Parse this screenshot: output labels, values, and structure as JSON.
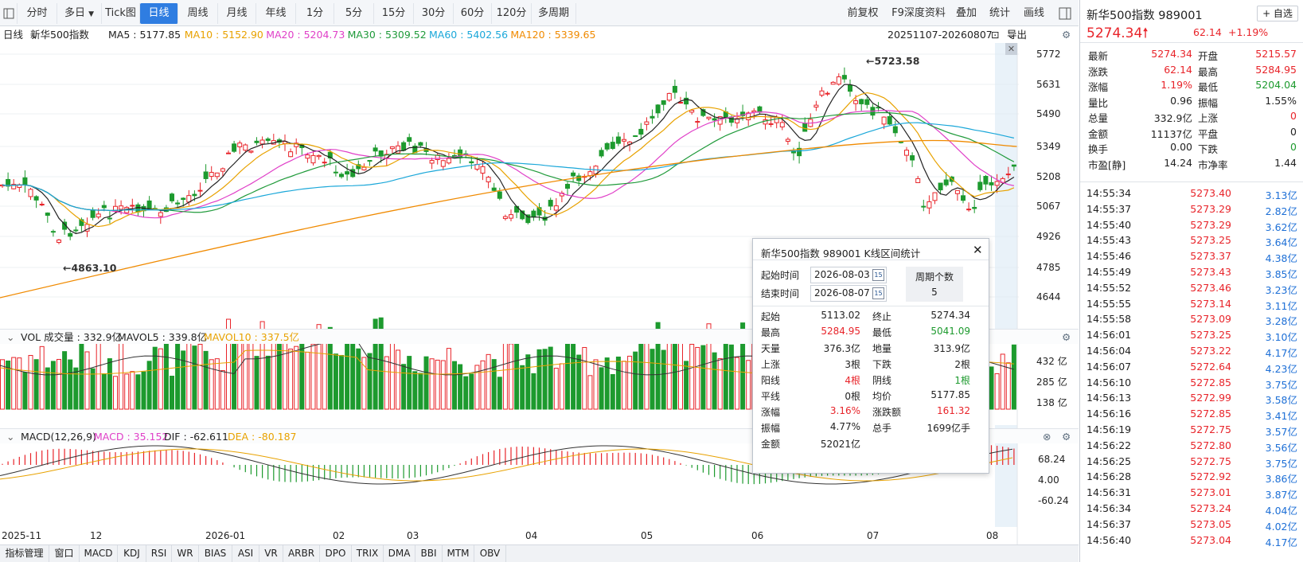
{
  "toolbar": {
    "tabs": [
      "分时",
      "多日",
      "Tick图",
      "日线",
      "周线",
      "月线",
      "年线",
      "1分",
      "5分",
      "15分",
      "30分",
      "60分",
      "120分",
      "多周期"
    ],
    "active": "日线",
    "right_items": [
      "前复权",
      "F9深度资料",
      "叠加",
      "统计",
      "画线"
    ]
  },
  "infobar": {
    "period": "日线",
    "name": "新华500指数",
    "ma": [
      {
        "label": "MA5 : 5177.85",
        "color": "#222222"
      },
      {
        "label": "MA10 : 5152.90",
        "color": "#e8a200"
      },
      {
        "label": "MA20 : 5204.73",
        "color": "#e040c8"
      },
      {
        "label": "MA30 : 5309.52",
        "color": "#1f9a3a"
      },
      {
        "label": "MA60 : 5402.56",
        "color": "#1aa7d9"
      },
      {
        "label": "MA120 : 5339.65",
        "color": "#f08a00"
      }
    ],
    "range": "20251107-20260807",
    "export": "导出"
  },
  "price_axis": [
    "5772",
    "5631",
    "5490",
    "5349",
    "5208",
    "5067",
    "4926",
    "4785",
    "4644"
  ],
  "annotations": {
    "high": "←5723.58",
    "low": "←4863.10"
  },
  "vol": {
    "header": "VOL 成交量 : 332.9亿",
    "mavol5": "MAVOL5 : 339.8亿",
    "mavol10": "MAVOL10 : 337.5亿",
    "axis": [
      "432 亿",
      "285 亿",
      "138 亿"
    ]
  },
  "macd": {
    "header": "MACD(12,26,9)",
    "macd": "MACD : 35.152",
    "dif": "DIF : -62.611",
    "dea": "DEA : -80.187",
    "axis": [
      "68.24",
      "4.00",
      "-60.24"
    ]
  },
  "dates": [
    "2025-11",
    "12",
    "2026-01",
    "02",
    "03",
    "04",
    "05",
    "06",
    "07",
    "08"
  ],
  "bottom_tabs": [
    "指标管理",
    "窗口",
    "MACD",
    "KDJ",
    "RSI",
    "WR",
    "BIAS",
    "ASI",
    "VR",
    "ARBR",
    "DPO",
    "TRIX",
    "DMA",
    "BBI",
    "MTM",
    "OBV"
  ],
  "popup": {
    "title": "新华500指数 989001 K线区间统计",
    "start_label": "起始时间",
    "start": "2026-08-03",
    "end_label": "结束时间",
    "end": "2026-08-07",
    "period_label": "周期个数",
    "period": "5",
    "stats": [
      [
        "起始",
        "5113.02",
        "终止",
        "5274.34"
      ],
      [
        "最高",
        "5284.95",
        "最低",
        "5041.09"
      ],
      [
        "天量",
        "376.3亿",
        "地量",
        "313.9亿"
      ],
      [
        "上涨",
        "3根",
        "下跌",
        "2根"
      ],
      [
        "阳线",
        "4根",
        "阴线",
        "1根"
      ],
      [
        "平线",
        "0根",
        "均价",
        "5177.85"
      ],
      [
        "涨幅",
        "3.16%",
        "涨跌额",
        "161.32"
      ],
      [
        "振幅",
        "4.77%",
        "总手",
        "1699亿手"
      ],
      [
        "金额",
        "52021亿",
        "",
        ""
      ]
    ]
  },
  "quote": {
    "name": "新华500指数",
    "code": "989001",
    "add": "+ 自选",
    "price": "5274.34",
    "change": "62.14",
    "pct": "+1.19%",
    "rows": [
      [
        "最新",
        "5274.34",
        "开盘",
        "5215.57"
      ],
      [
        "涨跌",
        "62.14",
        "最高",
        "5284.95"
      ],
      [
        "涨幅",
        "1.19%",
        "最低",
        "5204.04"
      ],
      [
        "量比",
        "0.96",
        "振幅",
        "1.55%"
      ],
      [
        "总量",
        "332.9亿",
        "上涨",
        "0"
      ],
      [
        "金额",
        "11137亿",
        "平盘",
        "0"
      ],
      [
        "换手",
        "0.00",
        "下跌",
        "0"
      ],
      [
        "市盈[静]",
        "14.24",
        "市净率",
        "1.44"
      ]
    ]
  },
  "ticks": [
    [
      "14:55:34",
      "5273.40",
      "3.13亿"
    ],
    [
      "14:55:37",
      "5273.29",
      "2.82亿"
    ],
    [
      "14:55:40",
      "5273.29",
      "3.62亿"
    ],
    [
      "14:55:43",
      "5273.25",
      "3.64亿"
    ],
    [
      "14:55:46",
      "5273.37",
      "4.38亿"
    ],
    [
      "14:55:49",
      "5273.43",
      "3.85亿"
    ],
    [
      "14:55:52",
      "5273.46",
      "3.23亿"
    ],
    [
      "14:55:55",
      "5273.14",
      "3.11亿"
    ],
    [
      "14:55:58",
      "5273.09",
      "3.28亿"
    ],
    [
      "14:56:01",
      "5273.25",
      "3.10亿"
    ],
    [
      "14:56:04",
      "5273.22",
      "4.17亿"
    ],
    [
      "14:56:07",
      "5272.64",
      "4.23亿"
    ],
    [
      "14:56:10",
      "5272.85",
      "3.75亿"
    ],
    [
      "14:56:13",
      "5272.99",
      "3.58亿"
    ],
    [
      "14:56:16",
      "5272.85",
      "3.41亿"
    ],
    [
      "14:56:19",
      "5272.75",
      "3.57亿"
    ],
    [
      "14:56:22",
      "5272.80",
      "3.56亿"
    ],
    [
      "14:56:25",
      "5272.75",
      "3.75亿"
    ],
    [
      "14:56:28",
      "5272.92",
      "3.86亿"
    ],
    [
      "14:56:31",
      "5273.01",
      "3.87亿"
    ],
    [
      "14:56:34",
      "5273.24",
      "4.04亿"
    ],
    [
      "14:56:37",
      "5273.05",
      "4.02亿"
    ],
    [
      "14:56:40",
      "5273.04",
      "4.17亿"
    ]
  ],
  "colors": {
    "up": "#e8242a",
    "down": "#1d9a2e",
    "accent": "#2f7de1"
  }
}
